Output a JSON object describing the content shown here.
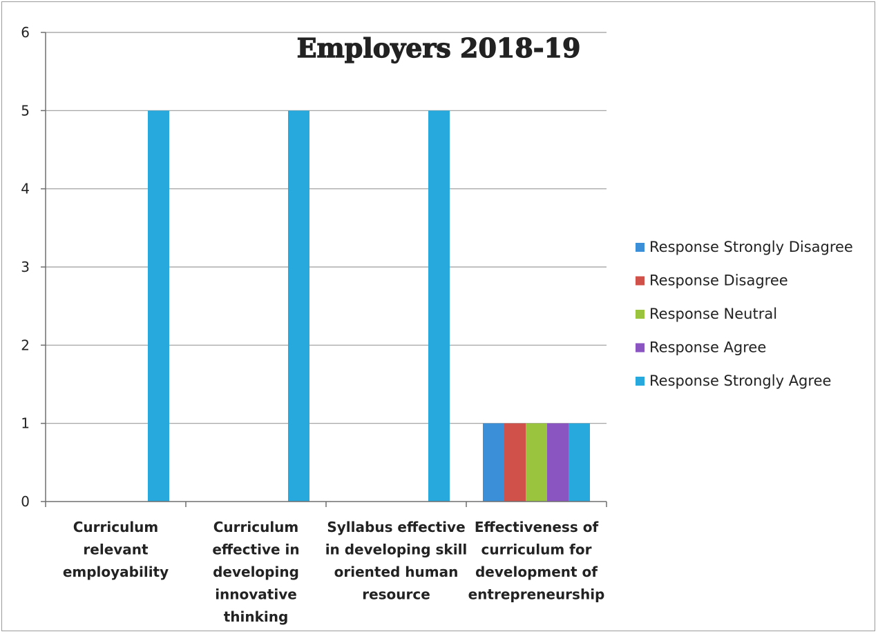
{
  "chart_data": {
    "type": "bar",
    "title": "Employers 2018-19",
    "categories": [
      [
        "Curriculum",
        "relevant",
        "employability"
      ],
      [
        "Curriculum",
        "effective in",
        "developing",
        "innovative",
        "thinking"
      ],
      [
        "Syllabus effective",
        "in developing skill",
        "oriented human",
        "resource"
      ],
      [
        "Effectiveness of",
        "curriculum for",
        "development of",
        "entrepreneurship"
      ]
    ],
    "series": [
      {
        "name": "Response Strongly Disagree",
        "color": "#3a8fd8",
        "values": [
          0,
          0,
          0,
          1
        ]
      },
      {
        "name": "Response Disagree",
        "color": "#d0504a",
        "values": [
          0,
          0,
          0,
          1
        ]
      },
      {
        "name": "Response Neutral",
        "color": "#9bc43e",
        "values": [
          0,
          0,
          0,
          1
        ]
      },
      {
        "name": "Response Agree",
        "color": "#8a55c0",
        "values": [
          0,
          0,
          0,
          1
        ]
      },
      {
        "name": "Response Strongly Agree",
        "color": "#28a9dd",
        "values": [
          5,
          5,
          5,
          1
        ]
      }
    ],
    "ylim": [
      0,
      6
    ],
    "yticks": [
      0,
      1,
      2,
      3,
      4,
      5,
      6
    ],
    "grid": true,
    "legend_position": "right"
  }
}
